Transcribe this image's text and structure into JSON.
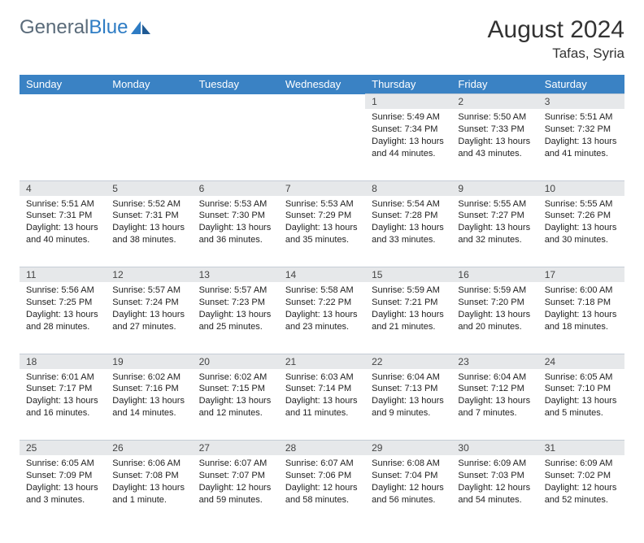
{
  "logo": {
    "text_gray": "General",
    "text_blue": "Blue"
  },
  "title": "August 2024",
  "location": "Tafas, Syria",
  "colors": {
    "header_bg": "#3a82c4",
    "header_text": "#ffffff",
    "daynum_bg": "#e6e8ea",
    "border": "#c5cdd6",
    "logo_gray": "#5a6b7a",
    "logo_blue": "#2e7cc4"
  },
  "day_headers": [
    "Sunday",
    "Monday",
    "Tuesday",
    "Wednesday",
    "Thursday",
    "Friday",
    "Saturday"
  ],
  "weeks": [
    [
      null,
      null,
      null,
      null,
      {
        "n": "1",
        "sr": "5:49 AM",
        "ss": "7:34 PM",
        "dl": "13 hours and 44 minutes."
      },
      {
        "n": "2",
        "sr": "5:50 AM",
        "ss": "7:33 PM",
        "dl": "13 hours and 43 minutes."
      },
      {
        "n": "3",
        "sr": "5:51 AM",
        "ss": "7:32 PM",
        "dl": "13 hours and 41 minutes."
      }
    ],
    [
      {
        "n": "4",
        "sr": "5:51 AM",
        "ss": "7:31 PM",
        "dl": "13 hours and 40 minutes."
      },
      {
        "n": "5",
        "sr": "5:52 AM",
        "ss": "7:31 PM",
        "dl": "13 hours and 38 minutes."
      },
      {
        "n": "6",
        "sr": "5:53 AM",
        "ss": "7:30 PM",
        "dl": "13 hours and 36 minutes."
      },
      {
        "n": "7",
        "sr": "5:53 AM",
        "ss": "7:29 PM",
        "dl": "13 hours and 35 minutes."
      },
      {
        "n": "8",
        "sr": "5:54 AM",
        "ss": "7:28 PM",
        "dl": "13 hours and 33 minutes."
      },
      {
        "n": "9",
        "sr": "5:55 AM",
        "ss": "7:27 PM",
        "dl": "13 hours and 32 minutes."
      },
      {
        "n": "10",
        "sr": "5:55 AM",
        "ss": "7:26 PM",
        "dl": "13 hours and 30 minutes."
      }
    ],
    [
      {
        "n": "11",
        "sr": "5:56 AM",
        "ss": "7:25 PM",
        "dl": "13 hours and 28 minutes."
      },
      {
        "n": "12",
        "sr": "5:57 AM",
        "ss": "7:24 PM",
        "dl": "13 hours and 27 minutes."
      },
      {
        "n": "13",
        "sr": "5:57 AM",
        "ss": "7:23 PM",
        "dl": "13 hours and 25 minutes."
      },
      {
        "n": "14",
        "sr": "5:58 AM",
        "ss": "7:22 PM",
        "dl": "13 hours and 23 minutes."
      },
      {
        "n": "15",
        "sr": "5:59 AM",
        "ss": "7:21 PM",
        "dl": "13 hours and 21 minutes."
      },
      {
        "n": "16",
        "sr": "5:59 AM",
        "ss": "7:20 PM",
        "dl": "13 hours and 20 minutes."
      },
      {
        "n": "17",
        "sr": "6:00 AM",
        "ss": "7:18 PM",
        "dl": "13 hours and 18 minutes."
      }
    ],
    [
      {
        "n": "18",
        "sr": "6:01 AM",
        "ss": "7:17 PM",
        "dl": "13 hours and 16 minutes."
      },
      {
        "n": "19",
        "sr": "6:02 AM",
        "ss": "7:16 PM",
        "dl": "13 hours and 14 minutes."
      },
      {
        "n": "20",
        "sr": "6:02 AM",
        "ss": "7:15 PM",
        "dl": "13 hours and 12 minutes."
      },
      {
        "n": "21",
        "sr": "6:03 AM",
        "ss": "7:14 PM",
        "dl": "13 hours and 11 minutes."
      },
      {
        "n": "22",
        "sr": "6:04 AM",
        "ss": "7:13 PM",
        "dl": "13 hours and 9 minutes."
      },
      {
        "n": "23",
        "sr": "6:04 AM",
        "ss": "7:12 PM",
        "dl": "13 hours and 7 minutes."
      },
      {
        "n": "24",
        "sr": "6:05 AM",
        "ss": "7:10 PM",
        "dl": "13 hours and 5 minutes."
      }
    ],
    [
      {
        "n": "25",
        "sr": "6:05 AM",
        "ss": "7:09 PM",
        "dl": "13 hours and 3 minutes."
      },
      {
        "n": "26",
        "sr": "6:06 AM",
        "ss": "7:08 PM",
        "dl": "13 hours and 1 minute."
      },
      {
        "n": "27",
        "sr": "6:07 AM",
        "ss": "7:07 PM",
        "dl": "12 hours and 59 minutes."
      },
      {
        "n": "28",
        "sr": "6:07 AM",
        "ss": "7:06 PM",
        "dl": "12 hours and 58 minutes."
      },
      {
        "n": "29",
        "sr": "6:08 AM",
        "ss": "7:04 PM",
        "dl": "12 hours and 56 minutes."
      },
      {
        "n": "30",
        "sr": "6:09 AM",
        "ss": "7:03 PM",
        "dl": "12 hours and 54 minutes."
      },
      {
        "n": "31",
        "sr": "6:09 AM",
        "ss": "7:02 PM",
        "dl": "12 hours and 52 minutes."
      }
    ]
  ],
  "labels": {
    "sunrise": "Sunrise:",
    "sunset": "Sunset:",
    "daylight": "Daylight:"
  }
}
